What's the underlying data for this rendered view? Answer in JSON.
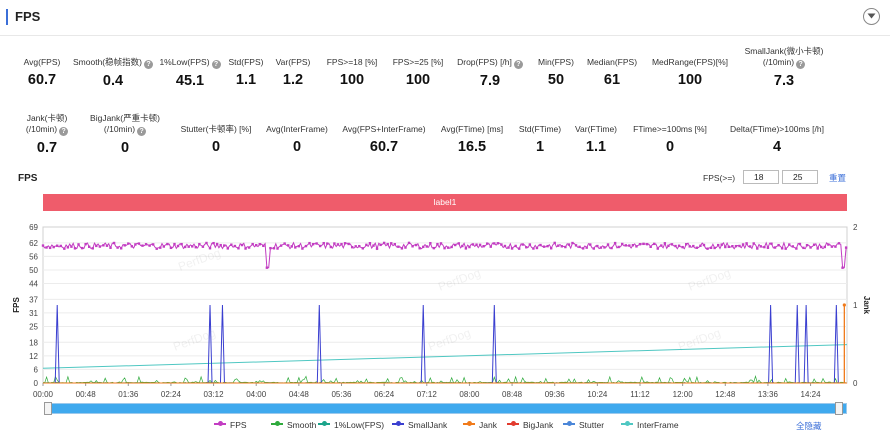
{
  "header": {
    "title": "FPS"
  },
  "stats_row1": [
    {
      "label": "Avg(FPS)",
      "value": "60.7",
      "help": false
    },
    {
      "label": "Smooth(稳帧指数)",
      "value": "0.4",
      "help": true
    },
    {
      "label": "1%Low(FPS)",
      "value": "45.1",
      "help": true
    },
    {
      "label": "Std(FPS)",
      "value": "1.1",
      "help": false
    },
    {
      "label": "Var(FPS)",
      "value": "1.2",
      "help": false
    },
    {
      "label": "FPS>=18 [%]",
      "value": "100",
      "help": false
    },
    {
      "label": "FPS>=25 [%]",
      "value": "100",
      "help": false
    },
    {
      "label": "Drop(FPS) [/h]",
      "value": "7.9",
      "help": true
    },
    {
      "label": "Min(FPS)",
      "value": "50",
      "help": false
    },
    {
      "label": "Median(FPS)",
      "value": "61",
      "help": false
    },
    {
      "label": "MedRange(FPS)[%]",
      "value": "100",
      "help": false
    },
    {
      "label": "SmallJank(微小卡顿)",
      "label2": "(/10min)",
      "value": "7.3",
      "help": true
    }
  ],
  "stats_row2": [
    {
      "label": "Jank(卡顿)",
      "label2": "(/10min)",
      "value": "0.7",
      "help": true
    },
    {
      "label": "BigJank(严重卡顿)",
      "label2": "(/10min)",
      "value": "0",
      "help": true
    },
    {
      "label": "Stutter(卡顿率) [%]",
      "value": "0",
      "help": false
    },
    {
      "label": "Avg(InterFrame)",
      "value": "0",
      "help": false
    },
    {
      "label": "Avg(FPS+InterFrame)",
      "value": "60.7",
      "help": false
    },
    {
      "label": "Avg(FTime) [ms]",
      "value": "16.5",
      "help": false
    },
    {
      "label": "Std(FTime)",
      "value": "1",
      "help": false
    },
    {
      "label": "Var(FTime)",
      "value": "1.1",
      "help": false
    },
    {
      "label": "FTime>=100ms [%]",
      "value": "0",
      "help": false
    },
    {
      "label": "Delta(FTime)>100ms [/h]",
      "value": "4",
      "help": false
    }
  ],
  "chart_controls": {
    "title": "FPS",
    "threshold_label": "FPS(>=)",
    "threshold_1": "18",
    "threshold_2": "25",
    "reset_label": "重置"
  },
  "label_band": "label1",
  "legend_hide_all": "全隐藏",
  "chart_data": {
    "type": "line",
    "title": "",
    "ylabel": "FPS",
    "y2label": "Jank",
    "ylim": [
      0,
      69
    ],
    "y2lim": [
      0,
      2
    ],
    "y_ticks": [
      "0",
      "6",
      "12",
      "18",
      "25",
      "31",
      "37",
      "44",
      "50",
      "56",
      "62",
      "69"
    ],
    "y_tick_values": [
      0,
      6,
      12,
      18,
      25,
      31,
      37,
      44,
      50,
      56,
      62,
      69
    ],
    "y2_ticks": [
      "0",
      "1",
      "2"
    ],
    "x_ticks": [
      "00:00",
      "00:48",
      "01:36",
      "02:24",
      "03:12",
      "04:00",
      "04:48",
      "05:36",
      "06:24",
      "07:12",
      "08:00",
      "08:48",
      "09:36",
      "10:24",
      "11:12",
      "12:00",
      "12:48",
      "13:36",
      "14:24"
    ],
    "x_range_seconds": [
      0,
      905
    ],
    "watermark": "PerfDog",
    "series": [
      {
        "name": "FPS",
        "color": "#c23cc2",
        "summary": {
          "typical": 60.7,
          "min": 50,
          "dips_at_s": [
            253,
            901
          ]
        }
      },
      {
        "name": "Smooth",
        "color": "#2eaa3c"
      },
      {
        "name": "1%Low(FPS)",
        "color": "#1ba48a"
      },
      {
        "name": "SmallJank",
        "color": "#3a3fd0",
        "spikes_at_s": [
          16,
          188,
          202,
          311,
          428,
          508,
          819,
          849,
          859,
          923
        ]
      },
      {
        "name": "Jank",
        "color": "#f07a1a",
        "spikes_at_s": [
          933
        ]
      },
      {
        "name": "BigJank",
        "color": "#e23b2e"
      },
      {
        "name": "Stutter",
        "color": "#4a86d8"
      },
      {
        "name": "InterFrame",
        "color": "#4fc7c2",
        "start": 6.5,
        "end": 17
      }
    ]
  }
}
